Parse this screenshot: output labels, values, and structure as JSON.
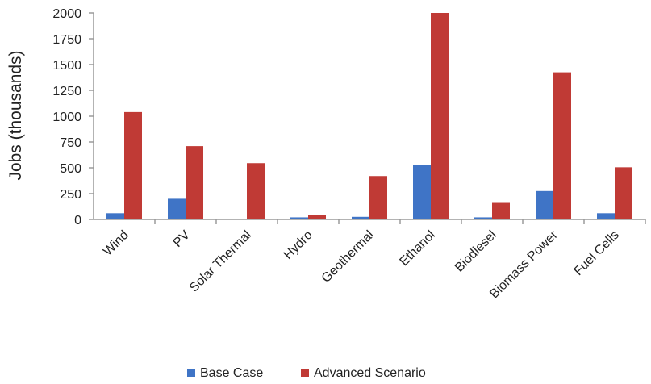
{
  "chart_data": {
    "type": "bar",
    "ylabel": "Jobs (thousands)",
    "xlabel": "",
    "categories": [
      "Wind",
      "PV",
      "Solar Thermal",
      "Hydro",
      "Geothermal",
      "Ethanol",
      "Biodiesel",
      "Biomass Power",
      "Fuel Cells"
    ],
    "series": [
      {
        "name": "Base Case",
        "color": "#3f74c6",
        "values": [
          60,
          200,
          0,
          20,
          25,
          530,
          20,
          275,
          60
        ]
      },
      {
        "name": "Advanced Scenario",
        "color": "#c03a35",
        "values": [
          1040,
          710,
          545,
          40,
          420,
          2000,
          160,
          1425,
          505
        ]
      }
    ],
    "ylim": [
      0,
      2000
    ],
    "yticks": [
      "0",
      "250",
      "500",
      "750",
      "1000",
      "1250",
      "1500",
      "1750",
      "2000"
    ],
    "ytick_values": [
      0,
      250,
      500,
      750,
      1000,
      1250,
      1500,
      1750,
      2000
    ],
    "grid": false,
    "legend_position": "bottom"
  }
}
